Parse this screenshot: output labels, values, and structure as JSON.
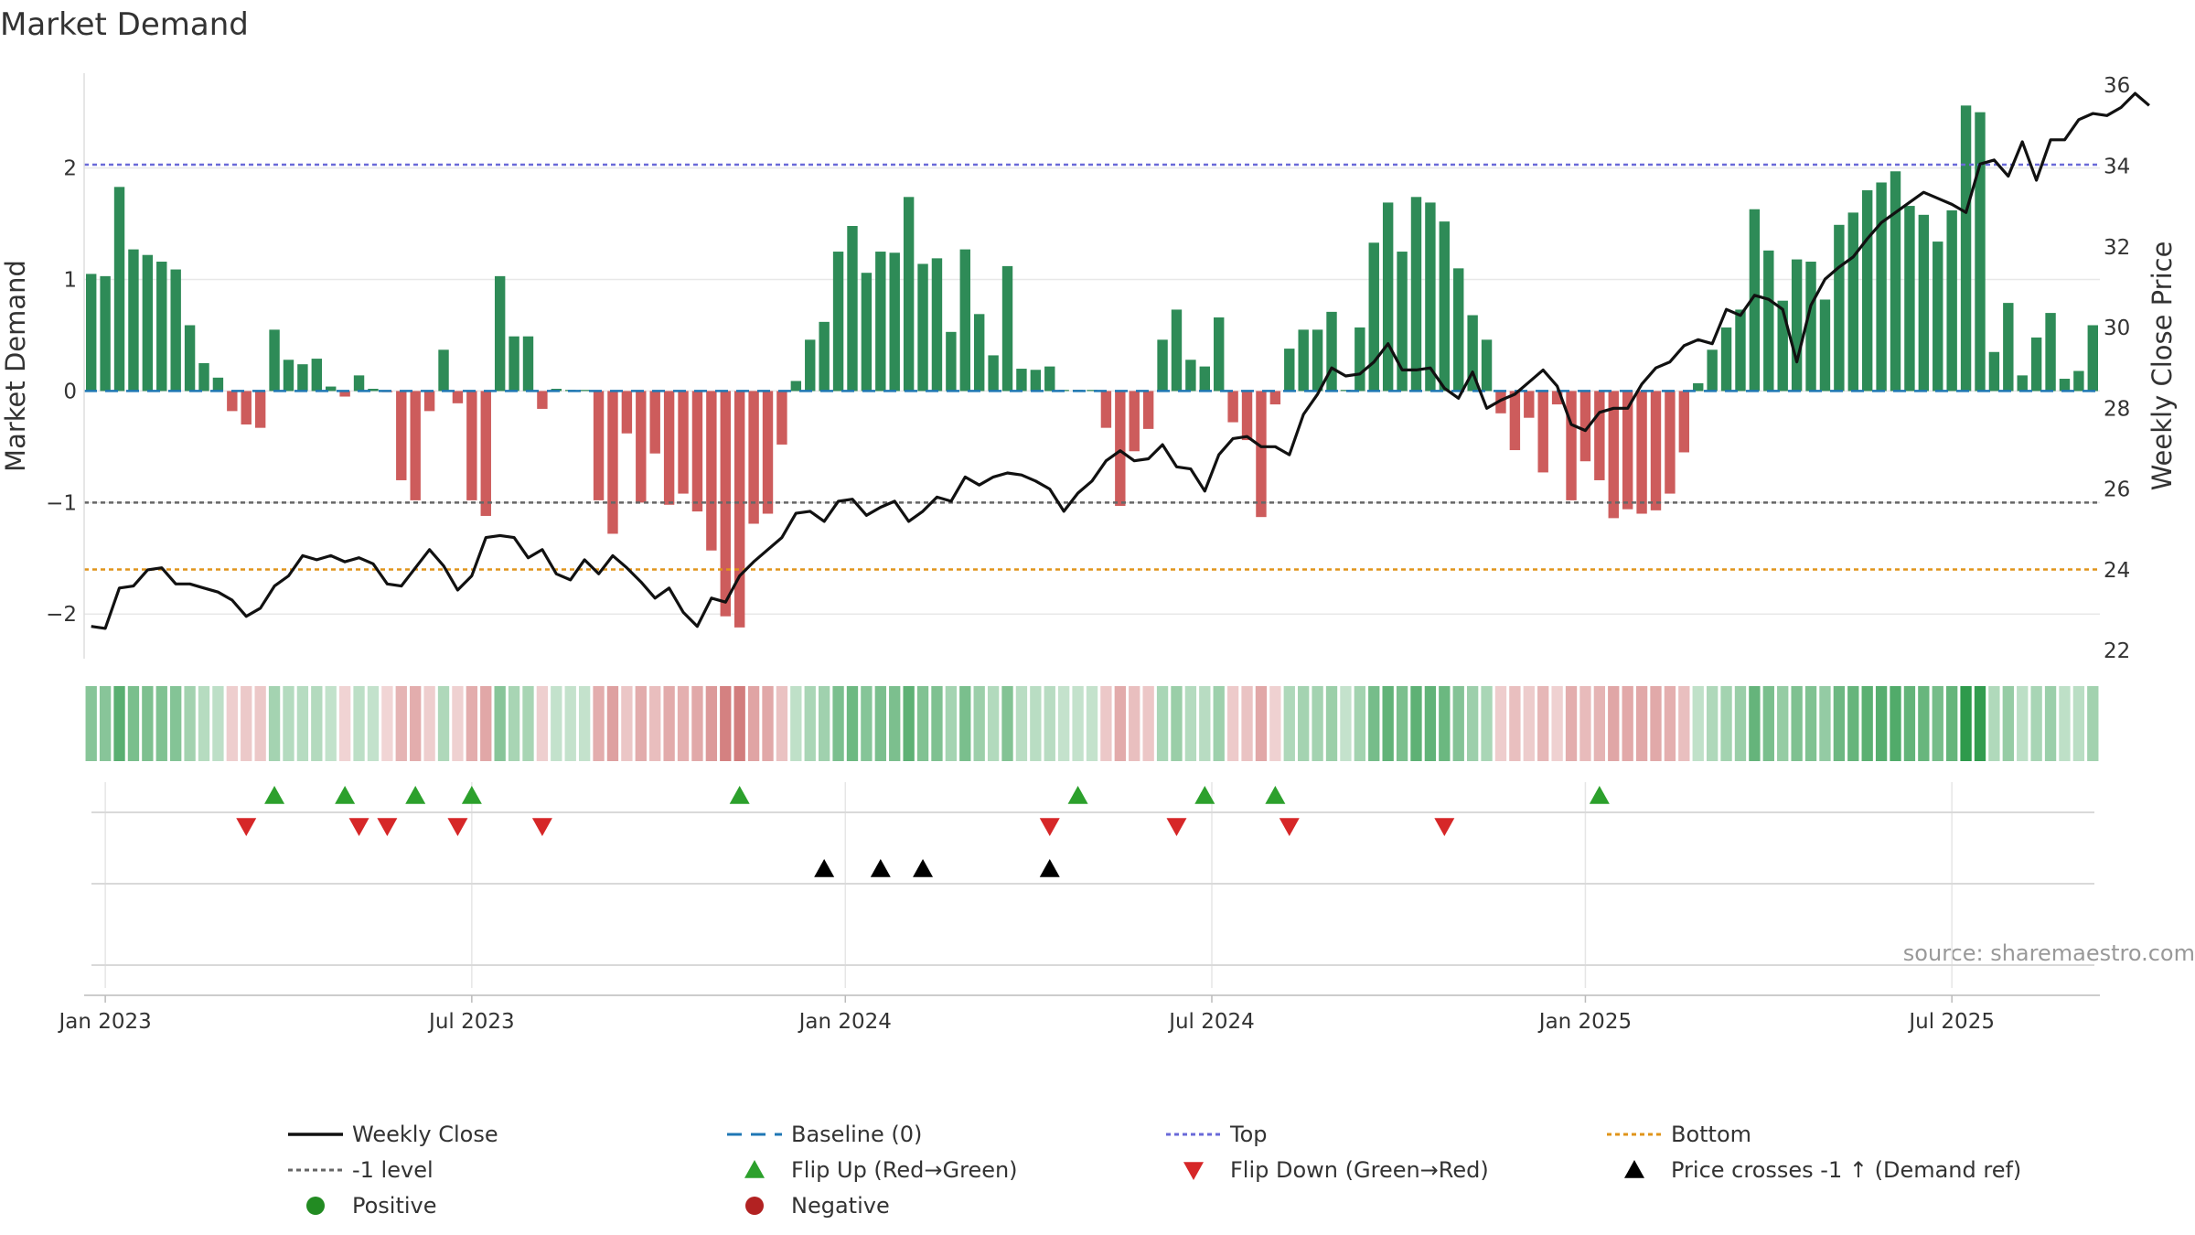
{
  "chart_data": {
    "type": "bar",
    "title": "Market Demand",
    "ylabel": "Market Demand",
    "y2label": "Weekly Close Price",
    "ylim": [
      -2.4,
      2.85
    ],
    "y2lim": [
      21.8,
      36.3
    ],
    "yticks": [
      2,
      1,
      0,
      -1,
      -2
    ],
    "ytick_labels": [
      "2",
      "1",
      "0",
      "−1",
      "−2"
    ],
    "y2ticks": [
      22,
      24,
      26,
      28,
      30,
      32,
      34,
      36
    ],
    "xticks": [
      {
        "week": 1,
        "label": "Jan 2023"
      },
      {
        "week": 27,
        "label": "Jul 2023"
      },
      {
        "week": 53.5,
        "label": "Jan 2024"
      },
      {
        "week": 79.5,
        "label": "Jul 2024"
      },
      {
        "week": 106,
        "label": "Jan 2025"
      },
      {
        "week": 132,
        "label": "Jul 2025"
      }
    ],
    "reference_lines": {
      "top": 2.03,
      "minus_one": -1.0,
      "bottom": -1.6,
      "baseline": 0
    },
    "demand": [
      1.05,
      1.03,
      1.83,
      1.27,
      1.22,
      1.16,
      1.09,
      0.59,
      0.25,
      0.12,
      -0.18,
      -0.3,
      -0.33,
      0.55,
      0.28,
      0.24,
      0.29,
      0.04,
      -0.05,
      0.14,
      0.02,
      -0.01,
      -0.8,
      -0.98,
      -0.18,
      0.37,
      -0.11,
      -0.98,
      -1.12,
      1.03,
      0.49,
      0.49,
      -0.16,
      0.02,
      0.01,
      0.01,
      -0.98,
      -1.28,
      -0.38,
      -1.0,
      -0.56,
      -1.02,
      -0.92,
      -1.08,
      -1.43,
      -2.02,
      -2.12,
      -1.19,
      -1.1,
      -0.48,
      0.09,
      0.46,
      0.62,
      1.25,
      1.48,
      1.06,
      1.25,
      1.24,
      1.74,
      1.14,
      1.19,
      0.53,
      1.27,
      0.69,
      0.32,
      1.12,
      0.2,
      0.19,
      0.22,
      0.01,
      0.01,
      0.01,
      -0.33,
      -1.03,
      -0.54,
      -0.34,
      0.46,
      0.73,
      0.28,
      0.22,
      0.66,
      -0.28,
      -0.44,
      -1.13,
      -0.12,
      0.38,
      0.55,
      0.55,
      0.71,
      0.01,
      0.57,
      1.33,
      1.69,
      1.25,
      1.74,
      1.69,
      1.52,
      1.1,
      0.68,
      0.46,
      -0.2,
      -0.53,
      -0.24,
      -0.73,
      -0.12,
      -0.98,
      -0.63,
      -0.8,
      -1.14,
      -1.06,
      -1.1,
      -1.07,
      -0.92,
      -0.55,
      0.07,
      0.37,
      0.57,
      0.73,
      1.63,
      1.26,
      0.81,
      1.18,
      1.16,
      0.82,
      1.49,
      1.6,
      1.8,
      1.87,
      1.97,
      1.66,
      1.58,
      1.34,
      1.62,
      2.56,
      2.5,
      0.35,
      0.79,
      0.14,
      0.48,
      0.7,
      0.11,
      0.18,
      0.59
    ],
    "weekly_close": [
      22.6,
      22.55,
      23.55,
      23.6,
      24.0,
      24.05,
      23.65,
      23.65,
      23.55,
      23.45,
      23.25,
      22.85,
      23.05,
      23.6,
      23.85,
      24.35,
      24.25,
      24.35,
      24.2,
      24.3,
      24.15,
      23.65,
      23.6,
      24.05,
      24.5,
      24.1,
      23.5,
      23.85,
      24.8,
      24.85,
      24.8,
      24.3,
      24.5,
      23.9,
      23.75,
      24.25,
      23.9,
      24.35,
      24.05,
      23.7,
      23.3,
      23.55,
      22.95,
      22.6,
      23.3,
      23.2,
      23.85,
      24.2,
      24.5,
      24.8,
      25.4,
      25.45,
      25.2,
      25.7,
      25.75,
      25.35,
      25.55,
      25.7,
      25.2,
      25.45,
      25.8,
      25.7,
      26.3,
      26.1,
      26.3,
      26.4,
      26.35,
      26.2,
      26.0,
      25.45,
      25.9,
      26.2,
      26.7,
      26.95,
      26.7,
      26.75,
      27.1,
      26.55,
      26.5,
      25.95,
      26.85,
      27.25,
      27.3,
      27.05,
      27.05,
      26.85,
      27.85,
      28.35,
      29.0,
      28.8,
      28.85,
      29.15,
      29.6,
      28.95,
      28.95,
      29.0,
      28.5,
      28.25,
      28.9,
      28.0,
      28.2,
      28.35,
      28.65,
      28.95,
      28.55,
      27.6,
      27.45,
      27.9,
      28.0,
      28.0,
      28.6,
      29.0,
      29.15,
      29.55,
      29.7,
      29.6,
      30.45,
      30.3,
      30.8,
      30.7,
      30.45,
      29.15,
      30.55,
      31.2,
      31.5,
      31.75,
      32.2,
      32.6,
      32.85,
      33.1,
      33.35,
      33.2,
      33.05,
      32.85,
      34.05,
      34.15,
      33.75,
      34.6,
      33.65,
      34.65,
      34.65,
      35.15,
      35.3,
      35.25,
      35.45,
      35.8,
      35.5
    ],
    "strip_color_scale": {
      "negative": "#cc6b6b",
      "positive": "#2e9a4c"
    },
    "flip_up_weeks": [
      13,
      18,
      23,
      27,
      46,
      70,
      79,
      84,
      107
    ],
    "flip_down_weeks": [
      11,
      19,
      21,
      26,
      32,
      68,
      77,
      85,
      96
    ],
    "price_cross_weeks": [
      52,
      56,
      59,
      68
    ],
    "source": "source: sharemaestro.com",
    "legend": [
      {
        "key": "weekly_close",
        "label": "Weekly Close"
      },
      {
        "key": "baseline",
        "label": "Baseline (0)"
      },
      {
        "key": "top",
        "label": "Top"
      },
      {
        "key": "bottom",
        "label": "Bottom"
      },
      {
        "key": "minus_one",
        "label": "-1 level"
      },
      {
        "key": "flip_up",
        "label": "Flip Up (Red→Green)"
      },
      {
        "key": "flip_down",
        "label": "Flip Down (Green→Red)"
      },
      {
        "key": "price_cross",
        "label": "Price crosses -1 ↑ (Demand ref)"
      },
      {
        "key": "positive",
        "label": "Positive"
      },
      {
        "key": "negative",
        "label": "Negative"
      }
    ],
    "colors": {
      "positive_bar": "#2e8b57",
      "negative_bar": "#cd5c5c",
      "price_line": "#111111",
      "baseline": "#1f77b4",
      "top": "#6a6ad8",
      "bottom": "#e0941a",
      "minus_one": "#666666",
      "flip_up": "#2ca02c",
      "flip_down": "#d62728",
      "price_cross": "#000000",
      "positive_dot": "#228b22",
      "negative_dot": "#b22222"
    }
  }
}
